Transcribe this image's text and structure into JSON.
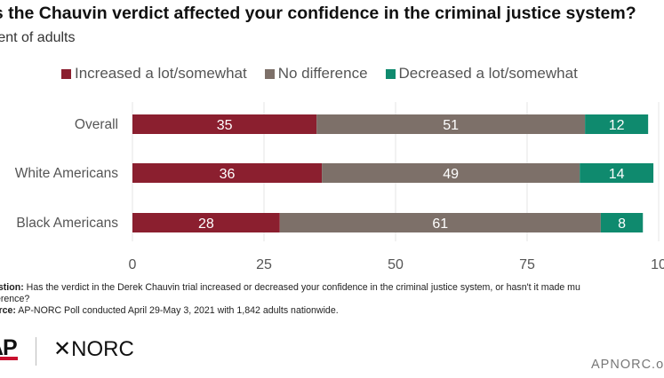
{
  "title": "as the Chauvin verdict affected your confidence in the criminal justice system?",
  "subtitle": "rcent of adults",
  "legend": [
    {
      "label": "Increased a lot/somewhat",
      "color": "#8b1f2f"
    },
    {
      "label": "No difference",
      "color": "#7d7069"
    },
    {
      "label": "Decreased a lot/somewhat",
      "color": "#0f8a6e"
    }
  ],
  "chart_data": {
    "type": "bar",
    "orientation": "horizontal",
    "stacked": true,
    "categories": [
      "Overall",
      "White Americans",
      "Black Americans"
    ],
    "series": [
      {
        "name": "Increased a lot/somewhat",
        "color": "#8b1f2f",
        "values": [
          35,
          36,
          28
        ]
      },
      {
        "name": "No difference",
        "color": "#7d7069",
        "values": [
          51,
          49,
          61
        ]
      },
      {
        "name": "Decreased a lot/somewhat",
        "color": "#0f8a6e",
        "values": [
          12,
          14,
          8
        ]
      }
    ],
    "xlim": [
      0,
      100
    ],
    "x_ticks": [
      "0",
      "25",
      "50",
      "75",
      "10"
    ],
    "grid": "vertical",
    "legend_position": "top"
  },
  "notes": {
    "question_label": "estion:",
    "question_text": " Has the verdict in the Derek Chauvin trial increased or decreased your confidence in the criminal justice system, or hasn't it made mu",
    "question_text_2": "ference?",
    "source_label": "urce:",
    "source_text": " AP-NORC Poll conducted April 29-May 3, 2021 with 1,842 adults nationwide."
  },
  "footer": {
    "ap": "AP",
    "norc": "✕NORC",
    "site": "APNORC.o"
  }
}
